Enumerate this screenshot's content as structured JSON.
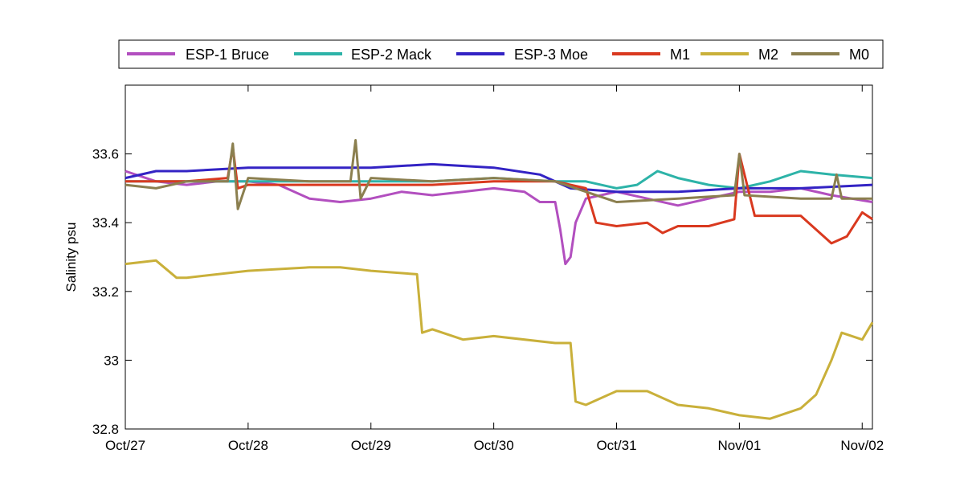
{
  "chart_data": {
    "type": "line",
    "title": "",
    "xlabel": "",
    "ylabel": "Salinity psu",
    "x_ticks": [
      "Oct/27",
      "Oct/28",
      "Oct/29",
      "Oct/30",
      "Oct/31",
      "Nov/01",
      "Nov/02"
    ],
    "y_ticks": [
      "32.8",
      "33",
      "33.2",
      "33.4",
      "33.6"
    ],
    "xlim": [
      "2010-10-27",
      "2010-11-02T02:00"
    ],
    "ylim": [
      32.8,
      33.8
    ],
    "grid": false,
    "legend_position": "top (outside plot, single row)",
    "series": [
      {
        "name": "ESP-1 Bruce",
        "color": "#b24fbf",
        "x": [
          "2010-10-27T00:00",
          "2010-10-27T06:00",
          "2010-10-27T12:00",
          "2010-10-27T18:00",
          "2010-10-28T00:00",
          "2010-10-28T06:00",
          "2010-10-28T12:00",
          "2010-10-28T18:00",
          "2010-10-29T00:00",
          "2010-10-29T06:00",
          "2010-10-29T12:00",
          "2010-10-29T18:00",
          "2010-10-30T00:00",
          "2010-10-30T06:00",
          "2010-10-30T09:00",
          "2010-10-30T12:00",
          "2010-10-30T13:00",
          "2010-10-30T14:00",
          "2010-10-30T15:00",
          "2010-10-30T16:00",
          "2010-10-30T18:00",
          "2010-10-31T00:00",
          "2010-10-31T06:00",
          "2010-10-31T12:00",
          "2010-10-31T18:00",
          "2010-11-01T00:00",
          "2010-11-01T06:00",
          "2010-11-01T12:00",
          "2010-11-01T18:00",
          "2010-11-02T02:00"
        ],
        "y": [
          33.55,
          33.52,
          33.51,
          33.52,
          33.52,
          33.51,
          33.47,
          33.46,
          33.47,
          33.49,
          33.48,
          33.49,
          33.5,
          33.49,
          33.46,
          33.46,
          33.38,
          33.28,
          33.3,
          33.4,
          33.47,
          33.49,
          33.47,
          33.45,
          33.47,
          33.49,
          33.49,
          33.5,
          33.48,
          33.46
        ]
      },
      {
        "name": "ESP-2 Mack",
        "color": "#2db3a8",
        "x": [
          "2010-10-27T00:00",
          "2010-10-27T12:00",
          "2010-10-28T00:00",
          "2010-10-28T12:00",
          "2010-10-29T00:00",
          "2010-10-29T12:00",
          "2010-10-30T00:00",
          "2010-10-30T12:00",
          "2010-10-30T18:00",
          "2010-10-31T00:00",
          "2010-10-31T04:00",
          "2010-10-31T08:00",
          "2010-10-31T12:00",
          "2010-10-31T18:00",
          "2010-11-01T00:00",
          "2010-11-01T06:00",
          "2010-11-01T12:00",
          "2010-11-01T18:00",
          "2010-11-02T02:00"
        ],
        "y": [
          33.52,
          33.52,
          33.52,
          33.52,
          33.52,
          33.52,
          33.53,
          33.52,
          33.52,
          33.5,
          33.51,
          33.55,
          33.53,
          33.51,
          33.5,
          33.52,
          33.55,
          33.54,
          33.53
        ]
      },
      {
        "name": "ESP-3 Moe",
        "color": "#3323c4",
        "x": [
          "2010-10-27T00:00",
          "2010-10-27T06:00",
          "2010-10-27T12:00",
          "2010-10-28T00:00",
          "2010-10-28T12:00",
          "2010-10-29T00:00",
          "2010-10-29T12:00",
          "2010-10-30T00:00",
          "2010-10-30T09:00",
          "2010-10-30T15:00",
          "2010-10-31T00:00",
          "2010-10-31T12:00",
          "2010-11-01T00:00",
          "2010-11-01T12:00",
          "2010-11-02T02:00"
        ],
        "y": [
          33.53,
          33.55,
          33.55,
          33.56,
          33.56,
          33.56,
          33.57,
          33.56,
          33.54,
          33.5,
          33.49,
          33.49,
          33.5,
          33.5,
          33.51
        ]
      },
      {
        "name": "M1",
        "color": "#d9391f",
        "x": [
          "2010-10-27T00:00",
          "2010-10-27T12:00",
          "2010-10-27T20:00",
          "2010-10-27T21:00",
          "2010-10-27T22:00",
          "2010-10-28T00:00",
          "2010-10-28T12:00",
          "2010-10-29T00:00",
          "2010-10-29T12:00",
          "2010-10-30T00:00",
          "2010-10-30T12:00",
          "2010-10-30T18:00",
          "2010-10-30T20:00",
          "2010-10-31T00:00",
          "2010-10-31T06:00",
          "2010-10-31T09:00",
          "2010-10-31T12:00",
          "2010-10-31T18:00",
          "2010-10-31T23:00",
          "2010-11-01T00:00",
          "2010-11-01T03:00",
          "2010-11-01T12:00",
          "2010-11-01T15:00",
          "2010-11-01T18:00",
          "2010-11-01T21:00",
          "2010-11-02T00:00",
          "2010-11-02T02:00"
        ],
        "y": [
          33.52,
          33.52,
          33.53,
          33.62,
          33.5,
          33.51,
          33.51,
          33.51,
          33.51,
          33.52,
          33.52,
          33.5,
          33.4,
          33.39,
          33.4,
          33.37,
          33.39,
          33.39,
          33.41,
          33.6,
          33.42,
          33.42,
          33.38,
          33.34,
          33.36,
          33.43,
          33.41
        ]
      },
      {
        "name": "M2",
        "color": "#c9b03a",
        "x": [
          "2010-10-27T00:00",
          "2010-10-27T06:00",
          "2010-10-27T10:00",
          "2010-10-27T12:00",
          "2010-10-28T00:00",
          "2010-10-28T12:00",
          "2010-10-28T18:00",
          "2010-10-29T00:00",
          "2010-10-29T09:00",
          "2010-10-29T10:00",
          "2010-10-29T12:00",
          "2010-10-29T18:00",
          "2010-10-30T00:00",
          "2010-10-30T12:00",
          "2010-10-30T15:00",
          "2010-10-30T16:00",
          "2010-10-30T18:00",
          "2010-10-31T00:00",
          "2010-10-31T06:00",
          "2010-10-31T12:00",
          "2010-10-31T18:00",
          "2010-11-01T00:00",
          "2010-11-01T06:00",
          "2010-11-01T12:00",
          "2010-11-01T15:00",
          "2010-11-01T18:00",
          "2010-11-01T20:00",
          "2010-11-02T00:00",
          "2010-11-02T02:00"
        ],
        "y": [
          33.28,
          33.29,
          33.24,
          33.24,
          33.26,
          33.27,
          33.27,
          33.26,
          33.25,
          33.08,
          33.09,
          33.06,
          33.07,
          33.05,
          33.05,
          32.88,
          32.87,
          32.91,
          32.91,
          32.87,
          32.86,
          32.84,
          32.83,
          32.86,
          32.9,
          33.0,
          33.08,
          33.06,
          33.11
        ]
      },
      {
        "name": "M0",
        "color": "#8b7f4f",
        "x": [
          "2010-10-27T00:00",
          "2010-10-27T06:00",
          "2010-10-27T12:00",
          "2010-10-27T20:00",
          "2010-10-27T21:00",
          "2010-10-27T22:00",
          "2010-10-28T00:00",
          "2010-10-28T12:00",
          "2010-10-28T20:00",
          "2010-10-28T21:00",
          "2010-10-28T22:00",
          "2010-10-29T00:00",
          "2010-10-29T12:00",
          "2010-10-30T00:00",
          "2010-10-30T12:00",
          "2010-10-30T18:00",
          "2010-10-31T00:00",
          "2010-10-31T12:00",
          "2010-10-31T23:00",
          "2010-11-01T00:00",
          "2010-11-01T01:00",
          "2010-11-01T12:00",
          "2010-11-01T18:00",
          "2010-11-01T19:00",
          "2010-11-01T20:00",
          "2010-11-02T02:00"
        ],
        "y": [
          33.51,
          33.5,
          33.52,
          33.52,
          33.63,
          33.44,
          33.53,
          33.52,
          33.52,
          33.64,
          33.47,
          33.53,
          33.52,
          33.53,
          33.52,
          33.49,
          33.46,
          33.47,
          33.48,
          33.6,
          33.48,
          33.47,
          33.47,
          33.54,
          33.47,
          33.47
        ]
      }
    ]
  }
}
